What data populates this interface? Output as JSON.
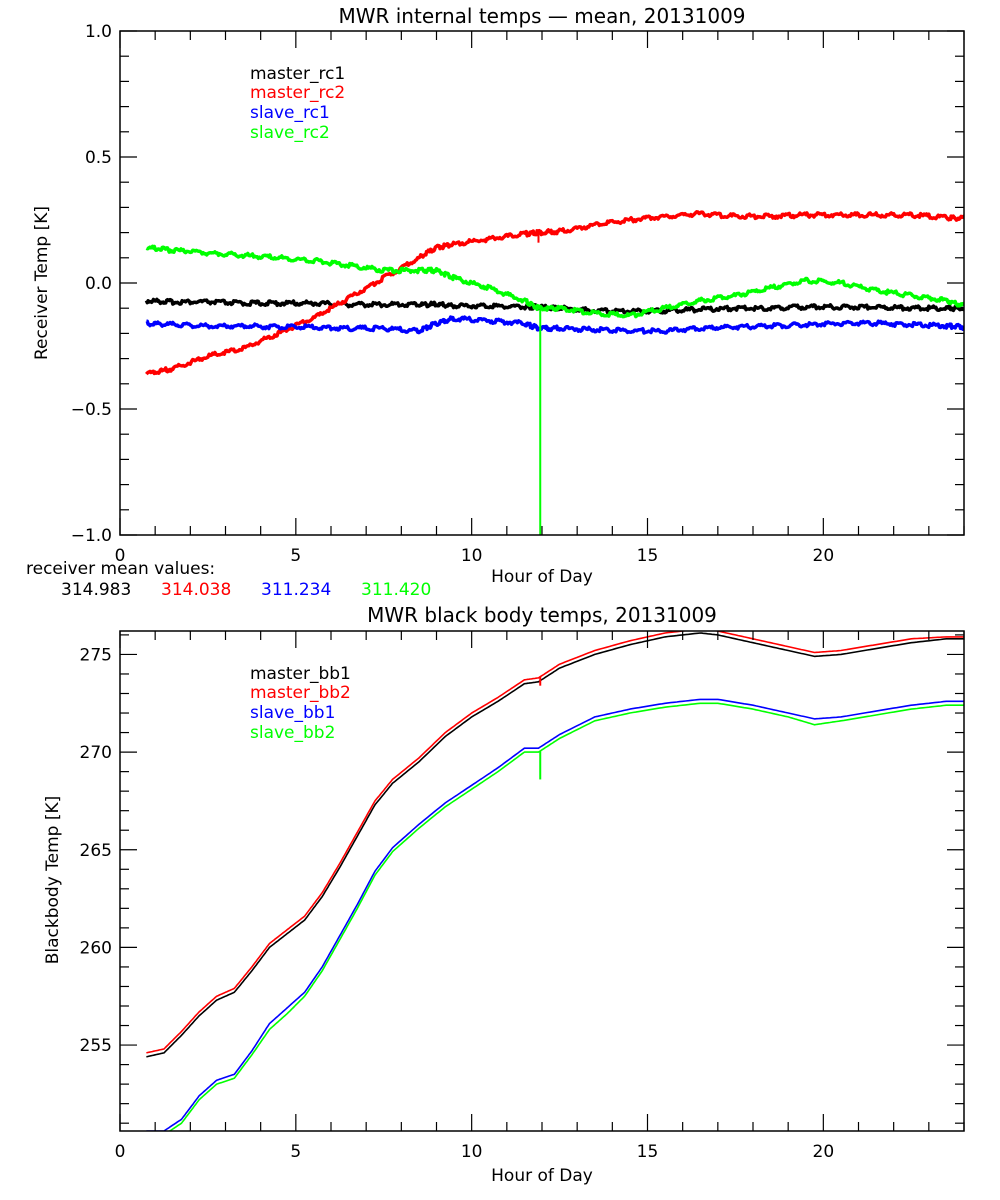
{
  "chart_data": [
    {
      "type": "line",
      "title": "MWR internal temps — mean, 20131009",
      "xlabel": "Hour of Day",
      "ylabel": "Receiver Temp [K]",
      "xlim": [
        0,
        24
      ],
      "ylim": [
        -1.0,
        1.0
      ],
      "xticks": [
        0,
        5,
        10,
        15,
        20
      ],
      "xtick_labels": [
        "0",
        "5",
        "10",
        "15",
        "20"
      ],
      "x_minor_step": 1,
      "yticks": [
        -1.0,
        -0.5,
        0.0,
        0.5,
        1.0
      ],
      "ytick_labels": [
        "-1.0",
        "-0.5",
        "0.0",
        "0.5",
        "1.0"
      ],
      "y_minor_step": 0.1,
      "grid": false,
      "legend_position": "top-left (inside)",
      "x": [
        0.75,
        1.5,
        2.5,
        3.5,
        4.5,
        5.5,
        6.5,
        7.5,
        8.5,
        9.0,
        9.5,
        10.5,
        11.5,
        11.9,
        12.5,
        13.5,
        14.5,
        15.5,
        16.5,
        17.5,
        18.5,
        19.5,
        20.5,
        21.5,
        22.5,
        23.5,
        24.0
      ],
      "series": [
        {
          "name": "master_rc1",
          "color": "#000000",
          "values": [
            -0.07,
            -0.075,
            -0.075,
            -0.08,
            -0.08,
            -0.08,
            -0.085,
            -0.085,
            -0.085,
            -0.085,
            -0.09,
            -0.09,
            -0.095,
            -0.095,
            -0.1,
            -0.11,
            -0.11,
            -0.11,
            -0.105,
            -0.1,
            -0.1,
            -0.095,
            -0.095,
            -0.095,
            -0.1,
            -0.1,
            -0.1
          ]
        },
        {
          "name": "master_rc2",
          "color": "#ff0000",
          "values": [
            -0.36,
            -0.34,
            -0.29,
            -0.26,
            -0.2,
            -0.14,
            -0.06,
            0.02,
            0.1,
            0.14,
            0.155,
            0.175,
            0.195,
            0.2,
            0.205,
            0.23,
            0.25,
            0.265,
            0.275,
            0.265,
            0.265,
            0.27,
            0.27,
            0.27,
            0.27,
            0.26,
            0.255
          ]
        },
        {
          "name": "slave_rc1",
          "color": "#0000ff",
          "values": [
            -0.16,
            -0.165,
            -0.17,
            -0.17,
            -0.175,
            -0.175,
            -0.18,
            -0.18,
            -0.19,
            -0.16,
            -0.14,
            -0.15,
            -0.16,
            -0.18,
            -0.18,
            -0.185,
            -0.19,
            -0.19,
            -0.18,
            -0.175,
            -0.17,
            -0.165,
            -0.16,
            -0.16,
            -0.165,
            -0.17,
            -0.175
          ]
        },
        {
          "name": "slave_rc2",
          "color": "#00ff00",
          "values": [
            0.14,
            0.13,
            0.12,
            0.11,
            0.1,
            0.09,
            0.07,
            0.05,
            0.05,
            0.05,
            0.02,
            -0.02,
            -0.07,
            -0.1,
            -0.1,
            -0.12,
            -0.13,
            -0.1,
            -0.07,
            -0.05,
            -0.02,
            0.01,
            0.0,
            -0.03,
            -0.05,
            -0.07,
            -0.09
          ]
        }
      ],
      "spikes": [
        {
          "series": "slave_rc2",
          "x": 11.95,
          "to": -1.0
        },
        {
          "series": "master_rc2",
          "x": 11.9,
          "to": 0.16
        }
      ],
      "annotations": {
        "label": "receiver mean values:",
        "values": [
          {
            "text": "314.983",
            "color": "#000000"
          },
          {
            "text": "314.038",
            "color": "#ff0000"
          },
          {
            "text": "311.234",
            "color": "#0000ff"
          },
          {
            "text": "311.420",
            "color": "#00ff00"
          }
        ]
      }
    },
    {
      "type": "line",
      "title": "MWR black body temps, 20131009",
      "xlabel": "Hour of Day",
      "ylabel": "Blackbody Temp [K]",
      "xlim": [
        0,
        24
      ],
      "ylim": [
        250.6,
        276.2
      ],
      "xticks": [
        0,
        5,
        10,
        15,
        20
      ],
      "xtick_labels": [
        "0",
        "5",
        "10",
        "15",
        "20"
      ],
      "x_minor_step": 1,
      "yticks": [
        255,
        260,
        265,
        270,
        275
      ],
      "ytick_labels": [
        "255",
        "260",
        "265",
        "270",
        "275"
      ],
      "y_minor_step": 1,
      "grid": false,
      "legend_position": "top-left (inside)",
      "x": [
        0.75,
        1.25,
        1.75,
        2.25,
        2.75,
        3.25,
        3.75,
        4.25,
        4.75,
        5.25,
        5.75,
        6.25,
        6.75,
        7.25,
        7.75,
        8.5,
        9.25,
        10.0,
        10.75,
        11.5,
        11.9,
        12.5,
        13.5,
        14.5,
        15.5,
        16.5,
        17.0,
        18.0,
        19.0,
        19.75,
        20.5,
        21.5,
        22.5,
        23.5,
        24.0
      ],
      "series": [
        {
          "name": "master_bb1",
          "color": "#000000",
          "values": [
            254.4,
            254.6,
            255.5,
            256.5,
            257.3,
            257.7,
            258.8,
            260.0,
            260.7,
            261.4,
            262.6,
            264.1,
            265.7,
            267.3,
            268.4,
            269.5,
            270.8,
            271.8,
            272.6,
            273.5,
            273.6,
            274.3,
            275.0,
            275.5,
            275.9,
            276.1,
            276.0,
            275.6,
            275.2,
            274.9,
            275.0,
            275.3,
            275.6,
            275.8,
            275.8
          ]
        },
        {
          "name": "master_bb2",
          "color": "#ff0000",
          "values": [
            254.6,
            254.8,
            255.7,
            256.7,
            257.5,
            257.9,
            259.0,
            260.2,
            260.9,
            261.6,
            262.8,
            264.3,
            265.9,
            267.5,
            268.6,
            269.7,
            271.0,
            272.0,
            272.8,
            273.7,
            273.8,
            274.5,
            275.2,
            275.7,
            276.1,
            276.3,
            276.2,
            275.8,
            275.4,
            275.1,
            275.2,
            275.5,
            275.8,
            275.9,
            275.9
          ]
        },
        {
          "name": "slave_bb1",
          "color": "#0000ff",
          "values": [
            250.6,
            250.6,
            251.2,
            252.4,
            253.2,
            253.5,
            254.7,
            256.1,
            256.9,
            257.7,
            259.0,
            260.6,
            262.2,
            263.9,
            265.1,
            266.3,
            267.4,
            268.3,
            269.2,
            270.2,
            270.2,
            270.9,
            271.8,
            272.2,
            272.5,
            272.7,
            272.7,
            272.4,
            272.0,
            271.7,
            271.8,
            272.1,
            272.4,
            272.6,
            272.6
          ]
        },
        {
          "name": "slave_bb2",
          "color": "#00ff00",
          "values": [
            250.3,
            250.4,
            251.0,
            252.2,
            253.0,
            253.3,
            254.5,
            255.8,
            256.6,
            257.5,
            258.8,
            260.4,
            262.0,
            263.7,
            264.9,
            266.1,
            267.2,
            268.1,
            269.0,
            270.0,
            270.0,
            270.7,
            271.6,
            272.0,
            272.3,
            272.5,
            272.5,
            272.2,
            271.8,
            271.4,
            271.6,
            271.9,
            272.2,
            272.4,
            272.4
          ]
        }
      ],
      "spikes": [
        {
          "series": "slave_bb2",
          "x": 11.95,
          "to": 268.6
        },
        {
          "series": "master_bb2",
          "x": 11.95,
          "to": 273.4
        }
      ]
    }
  ]
}
